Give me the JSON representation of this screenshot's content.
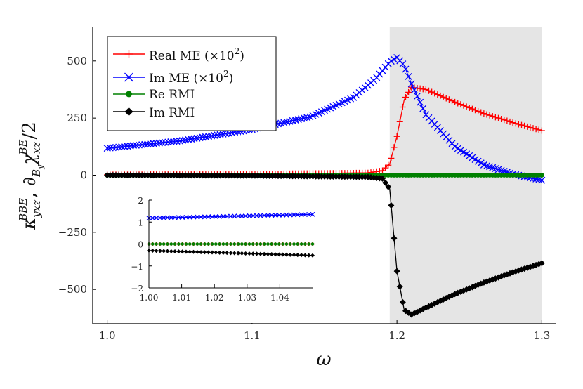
{
  "chart_data": {
    "type": "line",
    "title": "",
    "xlabel": "ω",
    "ylabel_parts": [
      "κ",
      "yxz",
      "BBE",
      ", ∂",
      "B",
      "y",
      "χ",
      "xz",
      "BE",
      "/2"
    ],
    "xlim": [
      0.99,
      1.31
    ],
    "ylim": [
      -650,
      650
    ],
    "x_ticks": [
      1.0,
      1.1,
      1.2,
      1.3
    ],
    "x_tick_labels": [
      "1.0",
      "1.1",
      "1.2",
      "1.3"
    ],
    "y_ticks": [
      500,
      250,
      0,
      -250,
      -500
    ],
    "y_tick_labels": [
      "500",
      "250",
      "0",
      "−250",
      "−500"
    ],
    "grid": false,
    "legend_position": "top-left",
    "shaded_region": {
      "x_from": 1.195,
      "x_to": 1.3,
      "color": "#e5e5e5"
    },
    "series": [
      {
        "name": "Real ME (×10²)",
        "legend_base": "Real ME (×10",
        "legend_sup": "2",
        "legend_tail": ")",
        "color": "#ff0000",
        "marker": "plus",
        "x": [
          1.0,
          1.1,
          1.18,
          1.19,
          1.195,
          1.2,
          1.205,
          1.21,
          1.22,
          1.24,
          1.26,
          1.28,
          1.3
        ],
        "y": [
          2,
          5,
          10,
          20,
          50,
          170,
          330,
          385,
          375,
          320,
          270,
          230,
          195
        ]
      },
      {
        "name": "Im ME (×10²)",
        "legend_base": "Im ME (×10",
        "legend_sup": "2",
        "legend_tail": ")",
        "color": "#0000ff",
        "marker": "cross",
        "x": [
          1.0,
          1.05,
          1.1,
          1.14,
          1.17,
          1.185,
          1.195,
          1.2,
          1.205,
          1.21,
          1.22,
          1.24,
          1.26,
          1.28,
          1.3
        ],
        "y": [
          118,
          150,
          200,
          255,
          340,
          420,
          495,
          515,
          480,
          400,
          265,
          125,
          45,
          5,
          -22
        ]
      },
      {
        "name": "Re RMI",
        "legend_base": "Re RMI",
        "legend_sup": "",
        "legend_tail": "",
        "color": "#008000",
        "marker": "circle",
        "x": [
          1.0,
          1.3
        ],
        "y": [
          0,
          0
        ]
      },
      {
        "name": "Im RMI",
        "legend_base": "Im RMI",
        "legend_sup": "",
        "legend_tail": "",
        "color": "#000000",
        "marker": "diamond",
        "x": [
          1.0,
          1.1,
          1.18,
          1.19,
          1.195,
          1.2,
          1.205,
          1.21,
          1.22,
          1.24,
          1.26,
          1.28,
          1.3
        ],
        "y": [
          0,
          -2,
          -8,
          -15,
          -60,
          -420,
          -590,
          -610,
          -580,
          -520,
          -470,
          -425,
          -385
        ]
      }
    ],
    "inset": {
      "xlim": [
        1.0,
        1.05
      ],
      "ylim": [
        -2,
        2
      ],
      "x_ticks": [
        1.0,
        1.01,
        1.02,
        1.03,
        1.04
      ],
      "x_tick_labels": [
        "1.00",
        "1.01",
        "1.02",
        "1.03",
        "1.04"
      ],
      "y_ticks": [
        2,
        1,
        0,
        -1,
        -2
      ],
      "y_tick_labels": [
        "2",
        "1",
        "0",
        "−1",
        "−2"
      ],
      "series": [
        {
          "name": "Real ME (×10²)",
          "color": "#ff0000",
          "marker": "plus",
          "x": [
            1.0,
            1.05
          ],
          "y": [
            0.0,
            0.0
          ]
        },
        {
          "name": "Im ME (×10²)",
          "color": "#0000ff",
          "marker": "cross",
          "x": [
            1.0,
            1.05
          ],
          "y": [
            1.18,
            1.35
          ]
        },
        {
          "name": "Re RMI",
          "color": "#008000",
          "marker": "circle",
          "x": [
            1.0,
            1.05
          ],
          "y": [
            0.0,
            0.0
          ]
        },
        {
          "name": "Im RMI",
          "color": "#000000",
          "marker": "diamond",
          "x": [
            1.0,
            1.05
          ],
          "y": [
            -0.3,
            -0.52
          ]
        }
      ]
    }
  }
}
